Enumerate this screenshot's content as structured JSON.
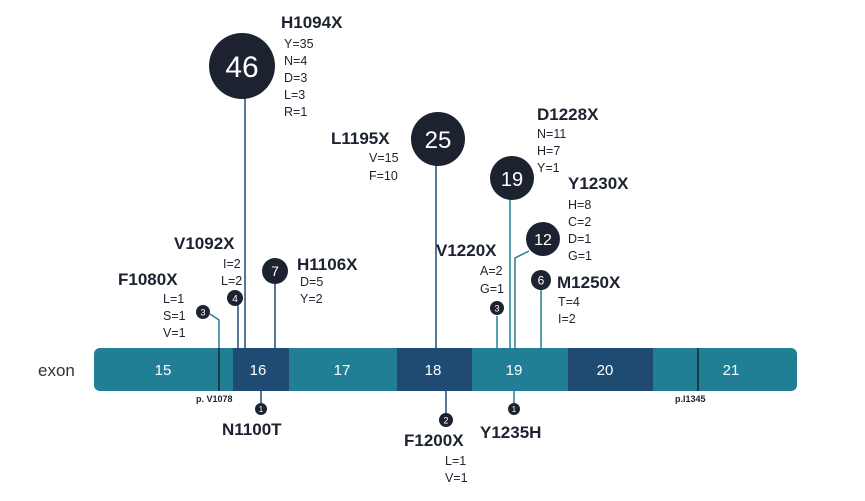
{
  "track_label": "exon",
  "colors": {
    "light": "#207f95",
    "dark": "#1f4a72",
    "bubble": "#1c2230",
    "stick_up": "#207f95",
    "stick_mid": "#1f4a72"
  },
  "exons": [
    "15",
    "16",
    "17",
    "18",
    "19",
    "20",
    "21"
  ],
  "boundary_labels": {
    "left": "p. V1078",
    "right": "p.I1345"
  },
  "mutations_above": [
    {
      "name": "F1080X",
      "count": "3",
      "subs": [
        "L=1",
        "S=1",
        "V=1"
      ]
    },
    {
      "name": "V1092X",
      "count": "4",
      "subs": [
        "I=2",
        "L=2"
      ]
    },
    {
      "name": "H1094X",
      "count": "46",
      "subs": [
        "Y=35",
        "N=4",
        "D=3",
        "L=3",
        "R=1"
      ]
    },
    {
      "name": "H1106X",
      "count": "7",
      "subs": [
        "D=5",
        "Y=2"
      ]
    },
    {
      "name": "L1195X",
      "count": "25",
      "subs": [
        "V=15",
        "F=10"
      ]
    },
    {
      "name": "V1220X",
      "count": "3",
      "subs": [
        "A=2",
        "G=1"
      ]
    },
    {
      "name": "D1228X",
      "count": "19",
      "subs": [
        "N=11",
        "H=7",
        "Y=1"
      ]
    },
    {
      "name": "Y1230X",
      "count": "12",
      "subs": [
        "H=8",
        "C=2",
        "D=1",
        "G=1"
      ]
    },
    {
      "name": "M1250X",
      "count": "6",
      "subs": [
        "T=4",
        "I=2"
      ]
    }
  ],
  "mutations_below": [
    {
      "name": "N1100T",
      "count": "1",
      "subs": []
    },
    {
      "name": "F1200X",
      "count": "2",
      "subs": [
        "L=1",
        "V=1"
      ]
    },
    {
      "name": "Y1235H",
      "count": "1",
      "subs": []
    }
  ]
}
